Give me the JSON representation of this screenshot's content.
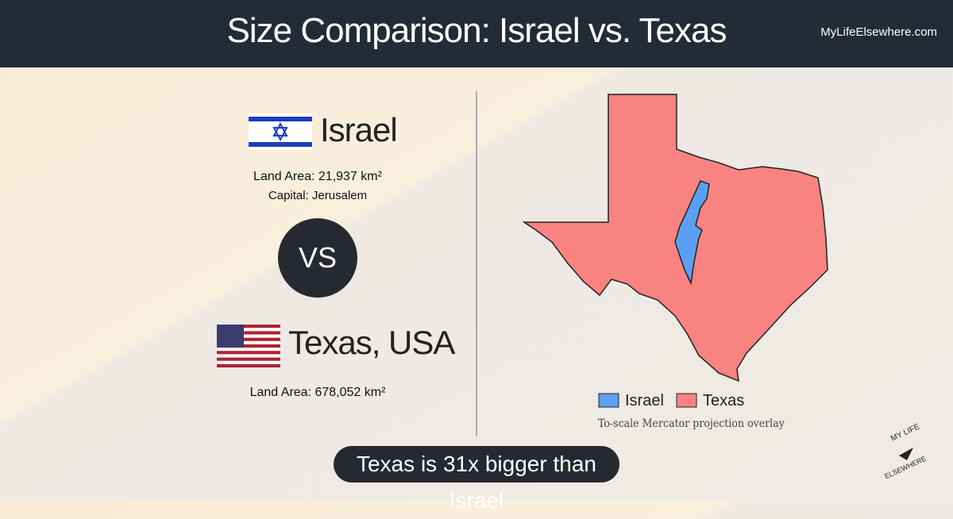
{
  "header": {
    "title": "Size Comparison: Israel vs. Texas",
    "site": "MyLifeElsewhere.com"
  },
  "left": {
    "first": {
      "name": "Israel",
      "area": "Land Area: 21,937 km²",
      "capital": "Capital: Jerusalem"
    },
    "vs": "VS",
    "second": {
      "name": "Texas, USA",
      "area": "Land Area: 678,052 km²"
    }
  },
  "map": {
    "legend": [
      "Israel",
      "Texas"
    ],
    "note": "To-scale Mercator projection overlay"
  },
  "footer": {
    "summary": "Texas is 31x bigger than Israel",
    "logo_top": "MY LIFE",
    "logo_bottom": "ELSEWHERE"
  }
}
